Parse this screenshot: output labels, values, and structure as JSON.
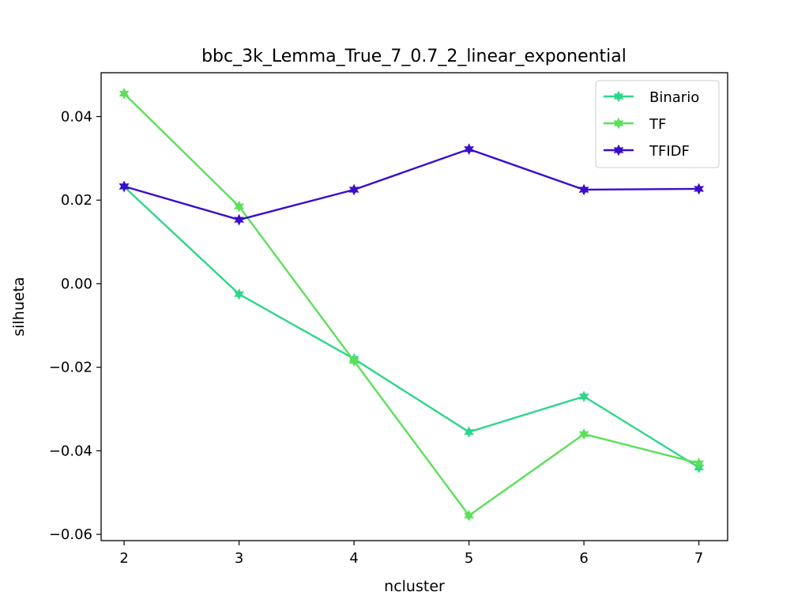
{
  "chart_data": {
    "type": "line",
    "title": "bbc_3k_Lemma_True_7_0.7_2_linear_exponential",
    "xlabel": "ncluster",
    "ylabel": "silhueta",
    "x": [
      2,
      3,
      4,
      5,
      6,
      7
    ],
    "xlim": [
      1.8,
      7.25
    ],
    "ylim": [
      -0.0615,
      0.0505
    ],
    "x_ticks": [
      2,
      3,
      4,
      5,
      6,
      7
    ],
    "x_tick_labels": [
      "2",
      "3",
      "4",
      "5",
      "6",
      "7"
    ],
    "y_ticks": [
      0.04,
      0.02,
      0.0,
      -0.02,
      -0.04,
      -0.06
    ],
    "y_tick_labels": [
      "0.04",
      "0.02",
      "0.00",
      "−0.02",
      "−0.04",
      "−0.06"
    ],
    "grid": false,
    "legend_position": "top-right",
    "marker": "star",
    "series": [
      {
        "name": "Binario",
        "color": "#2fd68a",
        "values": [
          0.0232,
          -0.0025,
          -0.018,
          -0.0355,
          -0.027,
          -0.044
        ]
      },
      {
        "name": "TF",
        "color": "#5ce05a",
        "values": [
          0.0455,
          0.0185,
          -0.0185,
          -0.0555,
          -0.036,
          -0.043
        ]
      },
      {
        "name": "TFIDF",
        "color": "#3b0ccc",
        "values": [
          0.0233,
          0.0153,
          0.0225,
          0.0322,
          0.0225,
          0.0227
        ]
      }
    ]
  }
}
